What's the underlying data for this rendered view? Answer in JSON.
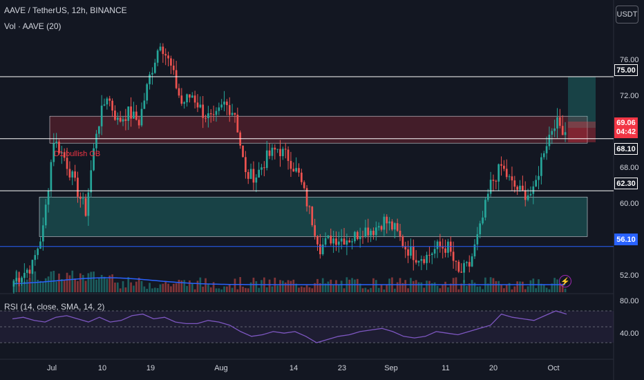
{
  "header": {
    "title": "AAVE / TetherUS, 12h, BINANCE",
    "volume_label": "Vol · AAVE (20)",
    "rsi_label": "RSI (14, close, SMA, 14, 2)",
    "currency_button": "USDT"
  },
  "annotations": {
    "ob_label": "D1 bullish OB",
    "price_tag": "69.06",
    "countdown": "04:42"
  },
  "colors": {
    "up": "#26a69a",
    "down": "#ef5350",
    "background": "#131722",
    "blue_line": "#2962ff",
    "rsi_line": "#7e57c2"
  },
  "icons": [
    "lightning-icon"
  ],
  "chart_data": [
    {
      "type": "line",
      "title": "AAVE / TetherUS, 12h, BINANCE",
      "xlabel": "",
      "ylabel": "",
      "ylim": [
        51,
        78
      ],
      "x_ticks": [
        "Jul",
        "10",
        "19",
        "Aug",
        "14",
        "23",
        "Sep",
        "11",
        "20",
        "Oct"
      ],
      "y_ticks": [
        "52.00",
        "56.00",
        "60.00",
        "64.00",
        "68.00",
        "72.00",
        "76.00"
      ],
      "horizontal_levels": [
        {
          "value": 75.0,
          "label": "75.00",
          "color": "white"
        },
        {
          "value": 68.1,
          "label": "68.10",
          "color": "white"
        },
        {
          "value": 62.3,
          "label": "62.30",
          "color": "white"
        },
        {
          "value": 56.1,
          "label": "56.10",
          "color": "blue"
        }
      ],
      "zones": [
        {
          "kind": "bearish-zone",
          "y_from": 67.6,
          "y_to": 70.6
        },
        {
          "kind": "bullish-ob",
          "y_from": 57.2,
          "y_to": 61.6
        },
        {
          "kind": "target-zone",
          "y_from": 69.3,
          "y_to": 75.0
        },
        {
          "kind": "stop-zone",
          "y_from": 67.7,
          "y_to": 70.0
        }
      ],
      "series": [
        {
          "name": "AAVE / TetherUS",
          "x": [
            "Jun 22",
            "Jun 24",
            "Jun 26",
            "Jun 28",
            "Jun 30",
            "Jul 2",
            "Jul 4",
            "Jul 6",
            "Jul 8",
            "Jul 10",
            "Jul 12",
            "Jul 14",
            "Jul 16",
            "Jul 18",
            "Jul 20",
            "Jul 22",
            "Jul 24",
            "Jul 26",
            "Jul 28",
            "Jul 30",
            "Aug 1",
            "Aug 3",
            "Aug 5",
            "Aug 7",
            "Aug 9",
            "Aug 11",
            "Aug 13",
            "Aug 15",
            "Aug 17",
            "Aug 19",
            "Aug 21",
            "Aug 23",
            "Aug 25",
            "Aug 27",
            "Aug 29",
            "Aug 31",
            "Sep 2",
            "Sep 4",
            "Sep 6",
            "Sep 8",
            "Sep 10",
            "Sep 12",
            "Sep 14",
            "Sep 16",
            "Sep 18",
            "Sep 20",
            "Sep 22",
            "Sep 24",
            "Sep 26",
            "Sep 28",
            "Sep 30",
            "Oct 2"
          ],
          "values": [
            53,
            54,
            58,
            68,
            66,
            63,
            60,
            69,
            73,
            70,
            71,
            70,
            75,
            79,
            76,
            72,
            73,
            71,
            70,
            72,
            71,
            64,
            64,
            66,
            67,
            66,
            64,
            60,
            56,
            57,
            57,
            57,
            58,
            58,
            59,
            58,
            56,
            55,
            55,
            56,
            56,
            53,
            54,
            58,
            63,
            65,
            63,
            62,
            62,
            67,
            70,
            69
          ]
        }
      ]
    },
    {
      "type": "bar",
      "title": "Vol · AAVE (20)",
      "xlabel": "",
      "ylabel": "",
      "note": "volume bars with moving average line"
    },
    {
      "type": "line",
      "title": "RSI (14, close, SMA, 14, 2)",
      "xlabel": "",
      "ylabel": "",
      "ylim": [
        20,
        85
      ],
      "y_ticks": [
        "80.00",
        "40.00"
      ],
      "band": [
        30,
        70
      ],
      "series": [
        {
          "name": "RSI",
          "values": [
            60,
            62,
            58,
            56,
            62,
            64,
            60,
            56,
            62,
            56,
            58,
            64,
            66,
            60,
            62,
            56,
            54,
            54,
            58,
            56,
            52,
            44,
            38,
            40,
            44,
            42,
            44,
            38,
            30,
            34,
            38,
            40,
            44,
            46,
            48,
            44,
            38,
            36,
            38,
            44,
            42,
            40,
            44,
            48,
            52,
            66,
            62,
            60,
            58,
            64,
            70,
            66
          ]
        }
      ]
    }
  ]
}
